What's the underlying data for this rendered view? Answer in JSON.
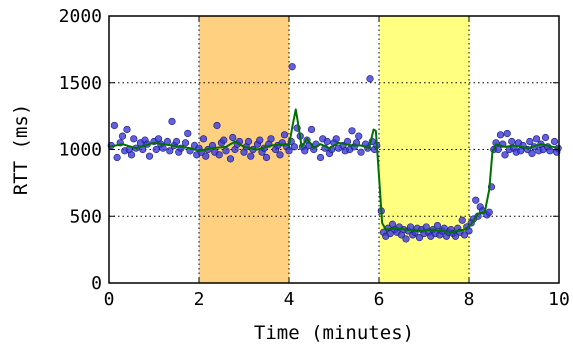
{
  "chart_data": {
    "type": "scatter",
    "title": "",
    "xlabel": "Time (minutes)",
    "ylabel": "RTT (ms)",
    "xlim": [
      0,
      10
    ],
    "ylim": [
      0,
      2000
    ],
    "x_ticks": [
      "0",
      "2",
      "4",
      "6",
      "8",
      "10"
    ],
    "y_ticks": [
      "0",
      "500",
      "1000",
      "1500",
      "2000"
    ],
    "grid": "horizontal dotted",
    "shaded_regions": [
      {
        "x_start": 2,
        "x_end": 4,
        "color": "#FFD080"
      },
      {
        "x_start": 6,
        "x_end": 8,
        "color": "#FFFF80"
      }
    ],
    "scatter_style": {
      "color": "#3A3AD8",
      "edge": "#1a1a80"
    },
    "line_style": {
      "color": "#007000"
    },
    "series": [
      {
        "type": "scatter",
        "points": [
          [
            0.05,
            1030
          ],
          [
            0.12,
            1180
          ],
          [
            0.18,
            940
          ],
          [
            0.25,
            1050
          ],
          [
            0.3,
            1100
          ],
          [
            0.35,
            990
          ],
          [
            0.4,
            1150
          ],
          [
            0.45,
            1000
          ],
          [
            0.5,
            960
          ],
          [
            0.55,
            1080
          ],
          [
            0.6,
            1010
          ],
          [
            0.7,
            1050
          ],
          [
            0.75,
            1000
          ],
          [
            0.8,
            1070
          ],
          [
            0.85,
            1040
          ],
          [
            0.9,
            950
          ],
          [
            1.0,
            1060
          ],
          [
            1.05,
            1000
          ],
          [
            1.1,
            1080
          ],
          [
            1.15,
            1040
          ],
          [
            1.2,
            1010
          ],
          [
            1.3,
            1060
          ],
          [
            1.35,
            990
          ],
          [
            1.4,
            1210
          ],
          [
            1.45,
            1030
          ],
          [
            1.5,
            1060
          ],
          [
            1.55,
            980
          ],
          [
            1.6,
            1010
          ],
          [
            1.7,
            1050
          ],
          [
            1.75,
            1120
          ],
          [
            1.8,
            990
          ],
          [
            1.9,
            1030
          ],
          [
            1.95,
            960
          ],
          [
            2.0,
            1010
          ],
          [
            2.05,
            980
          ],
          [
            2.1,
            1080
          ],
          [
            2.15,
            950
          ],
          [
            2.2,
            1000
          ],
          [
            2.3,
            1030
          ],
          [
            2.35,
            980
          ],
          [
            2.4,
            1180
          ],
          [
            2.45,
            960
          ],
          [
            2.5,
            1050
          ],
          [
            2.55,
            1070
          ],
          [
            2.6,
            990
          ],
          [
            2.7,
            930
          ],
          [
            2.75,
            1090
          ],
          [
            2.8,
            1000
          ],
          [
            2.85,
            1040
          ],
          [
            2.9,
            1060
          ],
          [
            3.0,
            980
          ],
          [
            3.05,
            1020
          ],
          [
            3.1,
            1060
          ],
          [
            3.15,
            950
          ],
          [
            3.2,
            1000
          ],
          [
            3.3,
            1040
          ],
          [
            3.35,
            1070
          ],
          [
            3.4,
            980
          ],
          [
            3.45,
            1010
          ],
          [
            3.5,
            940
          ],
          [
            3.55,
            1040
          ],
          [
            3.6,
            1080
          ],
          [
            3.7,
            1000
          ],
          [
            3.75,
            1030
          ],
          [
            3.8,
            960
          ],
          [
            3.85,
            1050
          ],
          [
            3.9,
            1110
          ],
          [
            3.95,
            1020
          ],
          [
            4.0,
            990
          ],
          [
            4.05,
            1060
          ],
          [
            4.07,
            1620
          ],
          [
            4.12,
            1020
          ],
          [
            4.18,
            1160
          ],
          [
            4.25,
            1100
          ],
          [
            4.3,
            1020
          ],
          [
            4.35,
            990
          ],
          [
            4.4,
            1070
          ],
          [
            4.45,
            1030
          ],
          [
            4.5,
            1150
          ],
          [
            4.55,
            1000
          ],
          [
            4.6,
            1040
          ],
          [
            4.7,
            940
          ],
          [
            4.75,
            1080
          ],
          [
            4.8,
            1010
          ],
          [
            4.85,
            1060
          ],
          [
            4.9,
            970
          ],
          [
            4.95,
            1000
          ],
          [
            5.0,
            1050
          ],
          [
            5.05,
            1080
          ],
          [
            5.1,
            1010
          ],
          [
            5.2,
            1030
          ],
          [
            5.25,
            990
          ],
          [
            5.3,
            1060
          ],
          [
            5.35,
            1000
          ],
          [
            5.4,
            1140
          ],
          [
            5.45,
            1020
          ],
          [
            5.5,
            1050
          ],
          [
            5.55,
            1100
          ],
          [
            5.6,
            980
          ],
          [
            5.7,
            1040
          ],
          [
            5.75,
            1010
          ],
          [
            5.8,
            1530
          ],
          [
            5.85,
            1060
          ],
          [
            5.9,
            1000
          ],
          [
            5.95,
            1030
          ],
          [
            6.05,
            540
          ],
          [
            6.1,
            380
          ],
          [
            6.15,
            350
          ],
          [
            6.2,
            410
          ],
          [
            6.25,
            370
          ],
          [
            6.3,
            440
          ],
          [
            6.35,
            400
          ],
          [
            6.4,
            380
          ],
          [
            6.45,
            420
          ],
          [
            6.5,
            360
          ],
          [
            6.55,
            400
          ],
          [
            6.6,
            330
          ],
          [
            6.65,
            390
          ],
          [
            6.7,
            420
          ],
          [
            6.75,
            360
          ],
          [
            6.8,
            380
          ],
          [
            6.85,
            410
          ],
          [
            6.9,
            340
          ],
          [
            6.95,
            400
          ],
          [
            7.0,
            370
          ],
          [
            7.05,
            420
          ],
          [
            7.1,
            380
          ],
          [
            7.15,
            350
          ],
          [
            7.2,
            400
          ],
          [
            7.25,
            370
          ],
          [
            7.3,
            430
          ],
          [
            7.35,
            360
          ],
          [
            7.4,
            390
          ],
          [
            7.45,
            410
          ],
          [
            7.5,
            350
          ],
          [
            7.55,
            380
          ],
          [
            7.6,
            400
          ],
          [
            7.65,
            370
          ],
          [
            7.7,
            350
          ],
          [
            7.75,
            410
          ],
          [
            7.8,
            380
          ],
          [
            7.85,
            470
          ],
          [
            7.9,
            360
          ],
          [
            7.95,
            420
          ],
          [
            8.0,
            390
          ],
          [
            8.05,
            450
          ],
          [
            8.1,
            480
          ],
          [
            8.15,
            620
          ],
          [
            8.2,
            500
          ],
          [
            8.25,
            570
          ],
          [
            8.3,
            540
          ],
          [
            8.4,
            510
          ],
          [
            8.45,
            530
          ],
          [
            8.5,
            720
          ],
          [
            8.55,
            1000
          ],
          [
            8.6,
            1050
          ],
          [
            8.65,
            1000
          ],
          [
            8.7,
            1110
          ],
          [
            8.75,
            1040
          ],
          [
            8.8,
            960
          ],
          [
            8.85,
            1120
          ],
          [
            8.9,
            1000
          ],
          [
            8.95,
            1060
          ],
          [
            9.0,
            1010
          ],
          [
            9.05,
            980
          ],
          [
            9.1,
            1050
          ],
          [
            9.15,
            990
          ],
          [
            9.2,
            1030
          ],
          [
            9.3,
            1000
          ],
          [
            9.35,
            1060
          ],
          [
            9.4,
            970
          ],
          [
            9.45,
            1020
          ],
          [
            9.5,
            1080
          ],
          [
            9.55,
            990
          ],
          [
            9.6,
            1040
          ],
          [
            9.65,
            1000
          ],
          [
            9.7,
            1090
          ],
          [
            9.75,
            1020
          ],
          [
            9.8,
            990
          ],
          [
            9.9,
            1060
          ],
          [
            9.95,
            980
          ],
          [
            9.98,
            1010
          ]
        ]
      },
      {
        "type": "line",
        "points": [
          [
            0,
            1020
          ],
          [
            0.3,
            1040
          ],
          [
            0.6,
            1010
          ],
          [
            1.0,
            1050
          ],
          [
            1.4,
            1030
          ],
          [
            1.8,
            1010
          ],
          [
            2.0,
            990
          ],
          [
            2.3,
            1010
          ],
          [
            2.6,
            1020
          ],
          [
            2.8,
            1060
          ],
          [
            3.0,
            1020
          ],
          [
            3.3,
            1000
          ],
          [
            3.6,
            1030
          ],
          [
            3.9,
            1040
          ],
          [
            4.0,
            1030
          ],
          [
            4.08,
            1180
          ],
          [
            4.15,
            1300
          ],
          [
            4.2,
            1200
          ],
          [
            4.28,
            1020
          ],
          [
            4.4,
            1080
          ],
          [
            4.55,
            1010
          ],
          [
            4.7,
            1040
          ],
          [
            4.9,
            1010
          ],
          [
            5.1,
            1050
          ],
          [
            5.4,
            1030
          ],
          [
            5.6,
            1030
          ],
          [
            5.78,
            1010
          ],
          [
            5.88,
            1150
          ],
          [
            5.93,
            1140
          ],
          [
            6.0,
            800
          ],
          [
            6.07,
            450
          ],
          [
            6.15,
            400
          ],
          [
            6.4,
            410
          ],
          [
            6.8,
            390
          ],
          [
            7.2,
            400
          ],
          [
            7.6,
            380
          ],
          [
            7.9,
            400
          ],
          [
            8.05,
            440
          ],
          [
            8.2,
            520
          ],
          [
            8.35,
            530
          ],
          [
            8.45,
            700
          ],
          [
            8.52,
            980
          ],
          [
            8.6,
            1040
          ],
          [
            8.8,
            1020
          ],
          [
            9.0,
            1030
          ],
          [
            9.3,
            1010
          ],
          [
            9.6,
            1040
          ],
          [
            10,
            1010
          ]
        ]
      }
    ]
  }
}
